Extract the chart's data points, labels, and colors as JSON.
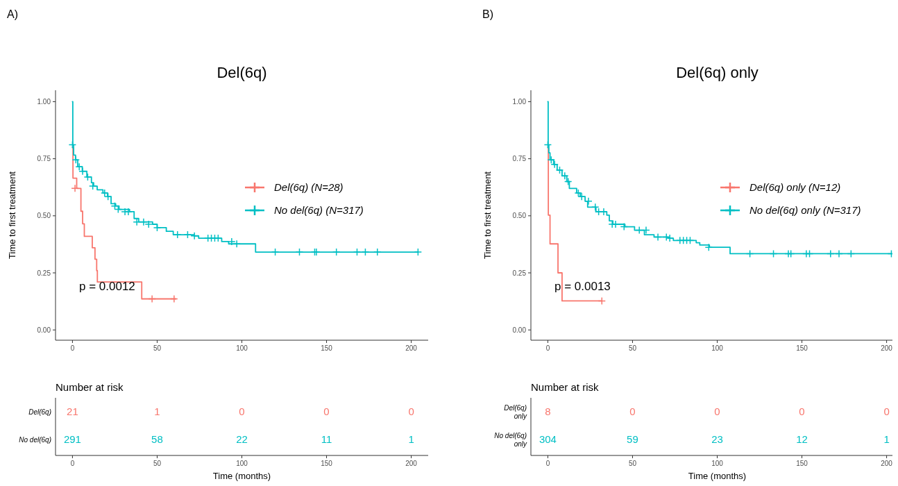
{
  "chart_data": [
    {
      "type": "step",
      "title": "Del(6q)",
      "ylabel": "Time to first treatment",
      "annotations": [
        "A)",
        "p = 0.0012"
      ],
      "legend": "right",
      "xlim": [
        -10,
        210
      ],
      "xticks": [
        0,
        50,
        100,
        150,
        200
      ],
      "ylim": [
        -0.045,
        1.05
      ],
      "yticks": [
        {
          "value": 0,
          "label": "0.00"
        },
        {
          "value": 0.25,
          "label": "0.25"
        },
        {
          "value": 0.5,
          "label": "0.50"
        },
        {
          "value": 0.75,
          "label": "0.75"
        },
        {
          "value": 1,
          "label": "1.00"
        }
      ],
      "series": [
        {
          "name": "Del(6q) (N=28)",
          "color": "#f8766d",
          "x": [
            0,
            0.3,
            2.5,
            5,
            6,
            7,
            11.7,
            13.3,
            14.3,
            14.7,
            40.9,
            61
          ],
          "values": [
            0.8,
            0.665,
            0.62,
            0.52,
            0.465,
            0.41,
            0.36,
            0.31,
            0.26,
            0.21,
            0.136,
            0.136
          ]
        },
        {
          "name": "No del(6q) (N=317)",
          "color": "#00bfc4",
          "x": [
            0,
            0.2,
            0.7,
            1.8,
            3.1,
            5.8,
            8.5,
            11.2,
            12.5,
            14.6,
            18,
            20.7,
            22.8,
            25.5,
            27.5,
            33.7,
            36.4,
            39.1,
            47.3,
            50,
            55.4,
            59.5,
            71.8,
            74.5,
            88.1,
            92.2,
            108.1,
            204
          ],
          "values": [
            1,
            0.811,
            0.766,
            0.745,
            0.715,
            0.695,
            0.67,
            0.645,
            0.63,
            0.614,
            0.6,
            0.584,
            0.553,
            0.543,
            0.528,
            0.518,
            0.488,
            0.473,
            0.463,
            0.448,
            0.432,
            0.417,
            0.412,
            0.402,
            0.387,
            0.377,
            0.341,
            0.341
          ]
        },
        {
          "type": "scatter",
          "marker": "cross",
          "color": "#f8766d",
          "x": [
            1.5,
            47,
            60
          ],
          "values": [
            0.62,
            0.136,
            0.136
          ]
        },
        {
          "type": "scatter",
          "marker": "cross",
          "color": "#00bfc4",
          "x": [
            0,
            2,
            4,
            6,
            9,
            12,
            19,
            21,
            25,
            27,
            31,
            33,
            38,
            42,
            45,
            50,
            62,
            68,
            72,
            80,
            82,
            84,
            86,
            94,
            97,
            119.7,
            134,
            143,
            144,
            155.8,
            168,
            172.9,
            180,
            204
          ],
          "values": [
            0.811,
            0.745,
            0.715,
            0.695,
            0.67,
            0.63,
            0.6,
            0.584,
            0.543,
            0.528,
            0.518,
            0.518,
            0.473,
            0.473,
            0.463,
            0.448,
            0.417,
            0.417,
            0.412,
            0.402,
            0.402,
            0.402,
            0.402,
            0.387,
            0.377,
            0.341,
            0.341,
            0.341,
            0.341,
            0.341,
            0.341,
            0.341,
            0.341,
            0.341
          ]
        }
      ]
    },
    {
      "type": "heatmap",
      "title": "Number at risk",
      "xlabel": "Time (months)",
      "categories": [
        "0",
        "50",
        "100",
        "150",
        "200"
      ],
      "y_categories": [
        "Del(6q)",
        "No del(6q)"
      ],
      "data_labels": true,
      "colors": [
        "#f8766d",
        "#00bfc4"
      ],
      "cells": [
        [
          21,
          1,
          0,
          0,
          0
        ],
        [
          291,
          58,
          22,
          11,
          1
        ]
      ]
    },
    {
      "type": "step",
      "title": "Del(6q) only",
      "ylabel": "Time to first treatment",
      "annotations": [
        "B)",
        "p = 0.0013"
      ],
      "legend": "right",
      "xlim": [
        -10,
        210
      ],
      "xticks": [
        0,
        50,
        100,
        150,
        200
      ],
      "ylim": [
        -0.045,
        1.05
      ],
      "yticks": [
        {
          "value": 0,
          "label": "0.00"
        },
        {
          "value": 0.25,
          "label": "0.25"
        },
        {
          "value": 0.5,
          "label": "0.50"
        },
        {
          "value": 0.75,
          "label": "0.75"
        },
        {
          "value": 1,
          "label": "1.00"
        }
      ],
      "series": [
        {
          "name": "Del(6q) only (N=12)",
          "color": "#f8766d",
          "x": [
            0,
            0.3,
            1.3,
            6,
            8.4,
            31.9
          ],
          "values": [
            0.8,
            0.503,
            0.377,
            0.25,
            0.127,
            0.127
          ]
        },
        {
          "name": "No del(6q) only (N=317)",
          "color": "#00bfc4",
          "x": [
            0,
            0.2,
            0.6,
            1.3,
            3.4,
            5.5,
            8.4,
            11.2,
            12.7,
            17,
            19.1,
            22,
            23.5,
            28.4,
            34.8,
            36.3,
            38.4,
            45.5,
            51.2,
            57,
            62.7,
            71.2,
            74.1,
            87.6,
            89.7,
            95.4,
            107.6,
            203
          ],
          "values": [
            1,
            0.811,
            0.776,
            0.745,
            0.725,
            0.7,
            0.675,
            0.65,
            0.62,
            0.6,
            0.584,
            0.564,
            0.538,
            0.518,
            0.503,
            0.478,
            0.463,
            0.452,
            0.437,
            0.417,
            0.407,
            0.402,
            0.392,
            0.382,
            0.372,
            0.362,
            0.334,
            0.334
          ]
        },
        {
          "type": "scatter",
          "marker": "cross",
          "color": "#f8766d",
          "x": [
            31.9
          ],
          "values": [
            0.127
          ]
        },
        {
          "type": "scatter",
          "marker": "cross",
          "color": "#00bfc4",
          "x": [
            0,
            2,
            4,
            7,
            10,
            12,
            18,
            20,
            24,
            28,
            30,
            33,
            38,
            40,
            45,
            54,
            58,
            65,
            70,
            72,
            78,
            80,
            82,
            84,
            95,
            119.3,
            133.2,
            142,
            143.5,
            152.6,
            154.5,
            166.9,
            171.9,
            179,
            202.8
          ],
          "values": [
            0.811,
            0.745,
            0.725,
            0.7,
            0.675,
            0.65,
            0.6,
            0.584,
            0.564,
            0.538,
            0.518,
            0.518,
            0.463,
            0.463,
            0.452,
            0.437,
            0.437,
            0.407,
            0.407,
            0.402,
            0.392,
            0.392,
            0.392,
            0.392,
            0.362,
            0.334,
            0.334,
            0.334,
            0.334,
            0.334,
            0.334,
            0.334,
            0.334,
            0.334,
            0.334
          ]
        }
      ]
    },
    {
      "type": "heatmap",
      "title": "Number at risk",
      "xlabel": "Time (months)",
      "categories": [
        "0",
        "50",
        "100",
        "150",
        "200"
      ],
      "y_categories": [
        "Del(6q)\nonly",
        "No del(6q)\nonly"
      ],
      "data_labels": true,
      "colors": [
        "#f8766d",
        "#00bfc4"
      ],
      "cells": [
        [
          8,
          0,
          0,
          0,
          0
        ],
        [
          304,
          59,
          23,
          12,
          1
        ]
      ]
    }
  ]
}
